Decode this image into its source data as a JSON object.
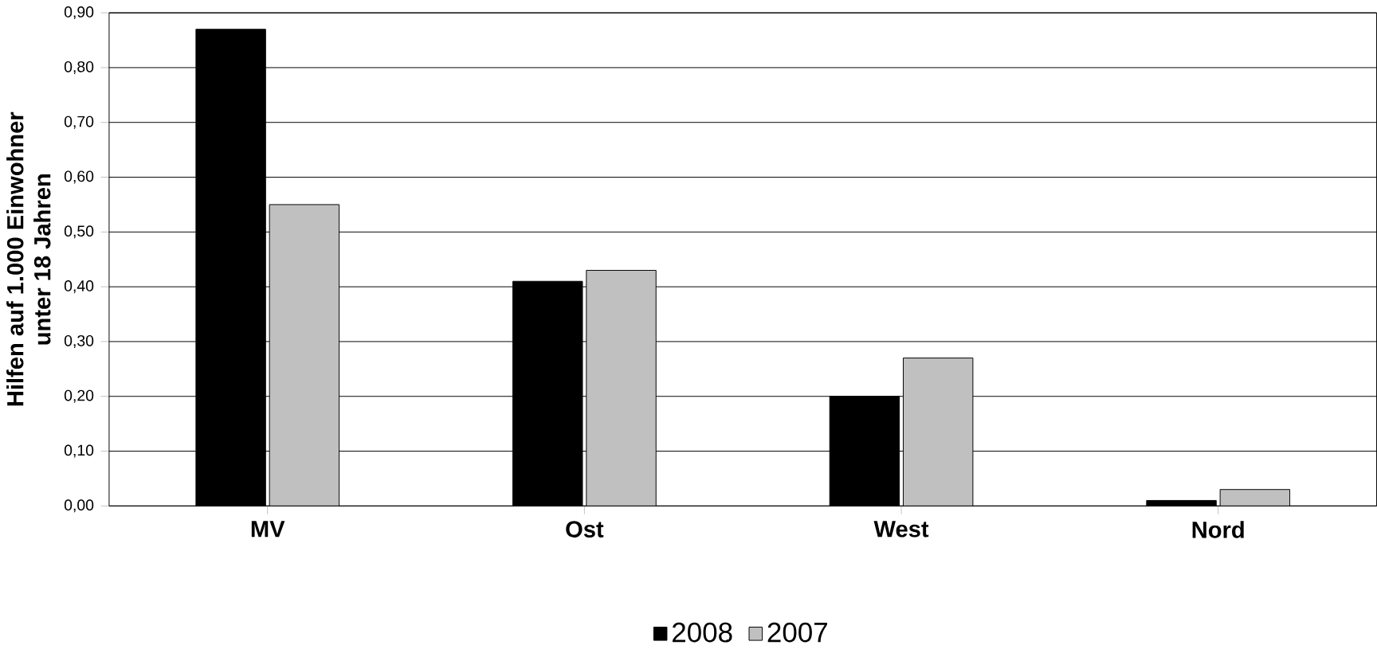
{
  "chart_data": {
    "type": "bar",
    "ylabel": "Hilfen auf 1.000 Einwohner\nunter 18 Jahren",
    "categories": [
      "MV",
      "Ost",
      "West",
      "Nord"
    ],
    "series": [
      {
        "name": "2008",
        "color": "#000000",
        "values": [
          0.87,
          0.41,
          0.2,
          0.01
        ]
      },
      {
        "name": "2007",
        "color": "#c0c0c0",
        "values": [
          0.55,
          0.43,
          0.27,
          0.03
        ]
      }
    ],
    "ylim": [
      0,
      0.9
    ],
    "yticks": [
      {
        "value": 0,
        "label": "0,00"
      },
      {
        "value": 0.1,
        "label": "0,10"
      },
      {
        "value": 0.2,
        "label": "0,20"
      },
      {
        "value": 0.3,
        "label": "0,30"
      },
      {
        "value": 0.4,
        "label": "0,40"
      },
      {
        "value": 0.5,
        "label": "0,50"
      },
      {
        "value": 0.6,
        "label": "0,60"
      },
      {
        "value": 0.7,
        "label": "0,70"
      },
      {
        "value": 0.8,
        "label": "0,80"
      },
      {
        "value": 0.9,
        "label": "0,90"
      }
    ],
    "grid": "y",
    "legend": "bottom"
  }
}
